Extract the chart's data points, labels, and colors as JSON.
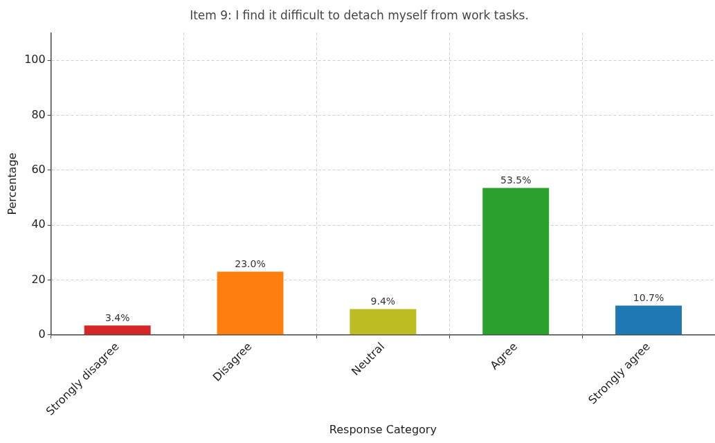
{
  "chart_data": {
    "type": "bar",
    "title": "Item 9: I find it difficult to detach myself from work tasks.",
    "xlabel": "Response Category",
    "ylabel": "Percentage",
    "categories": [
      "Strongly disagree",
      "Disagree",
      "Neutral",
      "Agree",
      "Strongly agree"
    ],
    "values": [
      3.4,
      23.0,
      9.4,
      53.5,
      10.7
    ],
    "colors": [
      "#d62728",
      "#ff7f0e",
      "#bcbd22",
      "#2ca02c",
      "#1f77b4"
    ],
    "value_labels": [
      "3.4%",
      "23.0%",
      "9.4%",
      "53.5%",
      "10.7%"
    ],
    "ylim": [
      0,
      110
    ],
    "yticks": [
      0,
      20,
      40,
      60,
      80,
      100
    ],
    "grid": true,
    "legend": false
  }
}
